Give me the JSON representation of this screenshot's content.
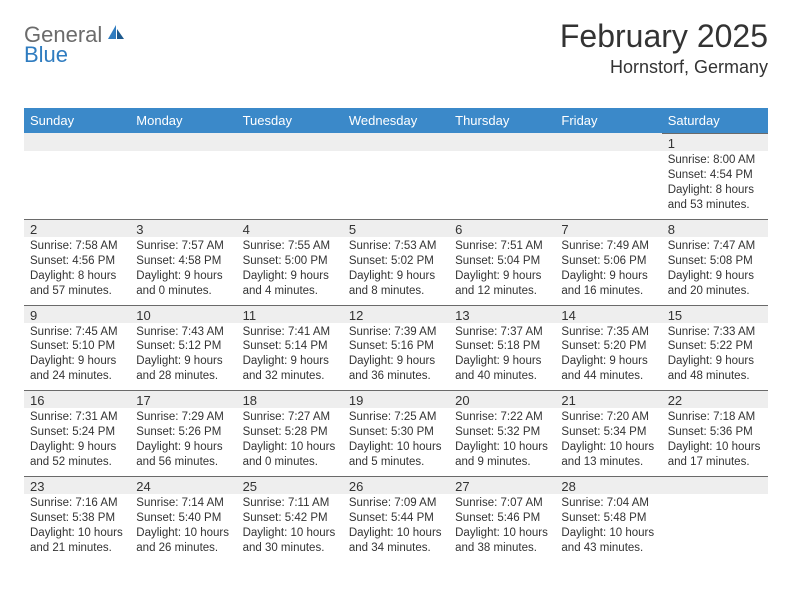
{
  "logo": {
    "general": "General",
    "blue": "Blue"
  },
  "title": "February 2025",
  "location": "Hornstorf, Germany",
  "colors": {
    "header_bg": "#3b89c9",
    "header_text": "#ffffff",
    "daynum_bg": "#eeeeee",
    "divider": "#6a6a6a",
    "text": "#333333",
    "logo_gray": "#6b6b6b",
    "logo_blue": "#2f7cc0",
    "background": "#ffffff"
  },
  "typography": {
    "title_fontsize": 32,
    "location_fontsize": 18,
    "dow_fontsize": 13,
    "daynum_fontsize": 13,
    "body_fontsize": 11.5
  },
  "days_of_week": [
    "Sunday",
    "Monday",
    "Tuesday",
    "Wednesday",
    "Thursday",
    "Friday",
    "Saturday"
  ],
  "weeks": [
    [
      null,
      null,
      null,
      null,
      null,
      null,
      {
        "n": "1",
        "sunrise": "Sunrise: 8:00 AM",
        "sunset": "Sunset: 4:54 PM",
        "daylight": "Daylight: 8 hours and 53 minutes."
      }
    ],
    [
      {
        "n": "2",
        "sunrise": "Sunrise: 7:58 AM",
        "sunset": "Sunset: 4:56 PM",
        "daylight": "Daylight: 8 hours and 57 minutes."
      },
      {
        "n": "3",
        "sunrise": "Sunrise: 7:57 AM",
        "sunset": "Sunset: 4:58 PM",
        "daylight": "Daylight: 9 hours and 0 minutes."
      },
      {
        "n": "4",
        "sunrise": "Sunrise: 7:55 AM",
        "sunset": "Sunset: 5:00 PM",
        "daylight": "Daylight: 9 hours and 4 minutes."
      },
      {
        "n": "5",
        "sunrise": "Sunrise: 7:53 AM",
        "sunset": "Sunset: 5:02 PM",
        "daylight": "Daylight: 9 hours and 8 minutes."
      },
      {
        "n": "6",
        "sunrise": "Sunrise: 7:51 AM",
        "sunset": "Sunset: 5:04 PM",
        "daylight": "Daylight: 9 hours and 12 minutes."
      },
      {
        "n": "7",
        "sunrise": "Sunrise: 7:49 AM",
        "sunset": "Sunset: 5:06 PM",
        "daylight": "Daylight: 9 hours and 16 minutes."
      },
      {
        "n": "8",
        "sunrise": "Sunrise: 7:47 AM",
        "sunset": "Sunset: 5:08 PM",
        "daylight": "Daylight: 9 hours and 20 minutes."
      }
    ],
    [
      {
        "n": "9",
        "sunrise": "Sunrise: 7:45 AM",
        "sunset": "Sunset: 5:10 PM",
        "daylight": "Daylight: 9 hours and 24 minutes."
      },
      {
        "n": "10",
        "sunrise": "Sunrise: 7:43 AM",
        "sunset": "Sunset: 5:12 PM",
        "daylight": "Daylight: 9 hours and 28 minutes."
      },
      {
        "n": "11",
        "sunrise": "Sunrise: 7:41 AM",
        "sunset": "Sunset: 5:14 PM",
        "daylight": "Daylight: 9 hours and 32 minutes."
      },
      {
        "n": "12",
        "sunrise": "Sunrise: 7:39 AM",
        "sunset": "Sunset: 5:16 PM",
        "daylight": "Daylight: 9 hours and 36 minutes."
      },
      {
        "n": "13",
        "sunrise": "Sunrise: 7:37 AM",
        "sunset": "Sunset: 5:18 PM",
        "daylight": "Daylight: 9 hours and 40 minutes."
      },
      {
        "n": "14",
        "sunrise": "Sunrise: 7:35 AM",
        "sunset": "Sunset: 5:20 PM",
        "daylight": "Daylight: 9 hours and 44 minutes."
      },
      {
        "n": "15",
        "sunrise": "Sunrise: 7:33 AM",
        "sunset": "Sunset: 5:22 PM",
        "daylight": "Daylight: 9 hours and 48 minutes."
      }
    ],
    [
      {
        "n": "16",
        "sunrise": "Sunrise: 7:31 AM",
        "sunset": "Sunset: 5:24 PM",
        "daylight": "Daylight: 9 hours and 52 minutes."
      },
      {
        "n": "17",
        "sunrise": "Sunrise: 7:29 AM",
        "sunset": "Sunset: 5:26 PM",
        "daylight": "Daylight: 9 hours and 56 minutes."
      },
      {
        "n": "18",
        "sunrise": "Sunrise: 7:27 AM",
        "sunset": "Sunset: 5:28 PM",
        "daylight": "Daylight: 10 hours and 0 minutes."
      },
      {
        "n": "19",
        "sunrise": "Sunrise: 7:25 AM",
        "sunset": "Sunset: 5:30 PM",
        "daylight": "Daylight: 10 hours and 5 minutes."
      },
      {
        "n": "20",
        "sunrise": "Sunrise: 7:22 AM",
        "sunset": "Sunset: 5:32 PM",
        "daylight": "Daylight: 10 hours and 9 minutes."
      },
      {
        "n": "21",
        "sunrise": "Sunrise: 7:20 AM",
        "sunset": "Sunset: 5:34 PM",
        "daylight": "Daylight: 10 hours and 13 minutes."
      },
      {
        "n": "22",
        "sunrise": "Sunrise: 7:18 AM",
        "sunset": "Sunset: 5:36 PM",
        "daylight": "Daylight: 10 hours and 17 minutes."
      }
    ],
    [
      {
        "n": "23",
        "sunrise": "Sunrise: 7:16 AM",
        "sunset": "Sunset: 5:38 PM",
        "daylight": "Daylight: 10 hours and 21 minutes."
      },
      {
        "n": "24",
        "sunrise": "Sunrise: 7:14 AM",
        "sunset": "Sunset: 5:40 PM",
        "daylight": "Daylight: 10 hours and 26 minutes."
      },
      {
        "n": "25",
        "sunrise": "Sunrise: 7:11 AM",
        "sunset": "Sunset: 5:42 PM",
        "daylight": "Daylight: 10 hours and 30 minutes."
      },
      {
        "n": "26",
        "sunrise": "Sunrise: 7:09 AM",
        "sunset": "Sunset: 5:44 PM",
        "daylight": "Daylight: 10 hours and 34 minutes."
      },
      {
        "n": "27",
        "sunrise": "Sunrise: 7:07 AM",
        "sunset": "Sunset: 5:46 PM",
        "daylight": "Daylight: 10 hours and 38 minutes."
      },
      {
        "n": "28",
        "sunrise": "Sunrise: 7:04 AM",
        "sunset": "Sunset: 5:48 PM",
        "daylight": "Daylight: 10 hours and 43 minutes."
      },
      null
    ]
  ]
}
